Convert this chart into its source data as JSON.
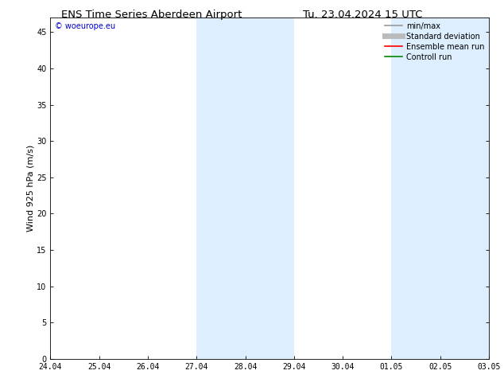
{
  "title_left": "ENS Time Series Aberdeen Airport",
  "title_right": "Tu. 23.04.2024 15 UTC",
  "ylabel": "Wind 925 hPa (m/s)",
  "watermark": "© woeurope.eu",
  "ylim": [
    0,
    47
  ],
  "yticks": [
    0,
    5,
    10,
    15,
    20,
    25,
    30,
    35,
    40,
    45
  ],
  "xtick_labels": [
    "24.04",
    "25.04",
    "26.04",
    "27.04",
    "28.04",
    "29.04",
    "30.04",
    "01.05",
    "02.05",
    "03.05"
  ],
  "shaded_bands": [
    {
      "xstart": 3.0,
      "xend": 5.0
    },
    {
      "xstart": 7.0,
      "xend": 9.0
    }
  ],
  "shade_color": "#ddeeff",
  "background_color": "#ffffff",
  "legend_entries": [
    {
      "label": "min/max",
      "color": "#999999",
      "lw": 1.2
    },
    {
      "label": "Standard deviation",
      "color": "#bbbbbb",
      "lw": 5
    },
    {
      "label": "Ensemble mean run",
      "color": "#ff0000",
      "lw": 1.2
    },
    {
      "label": "Controll run",
      "color": "#008800",
      "lw": 1.2
    }
  ],
  "title_fontsize": 9.5,
  "tick_fontsize": 7,
  "ylabel_fontsize": 8,
  "watermark_color": "#0000cc",
  "watermark_fontsize": 7,
  "legend_fontsize": 7,
  "spine_color": "#000000"
}
